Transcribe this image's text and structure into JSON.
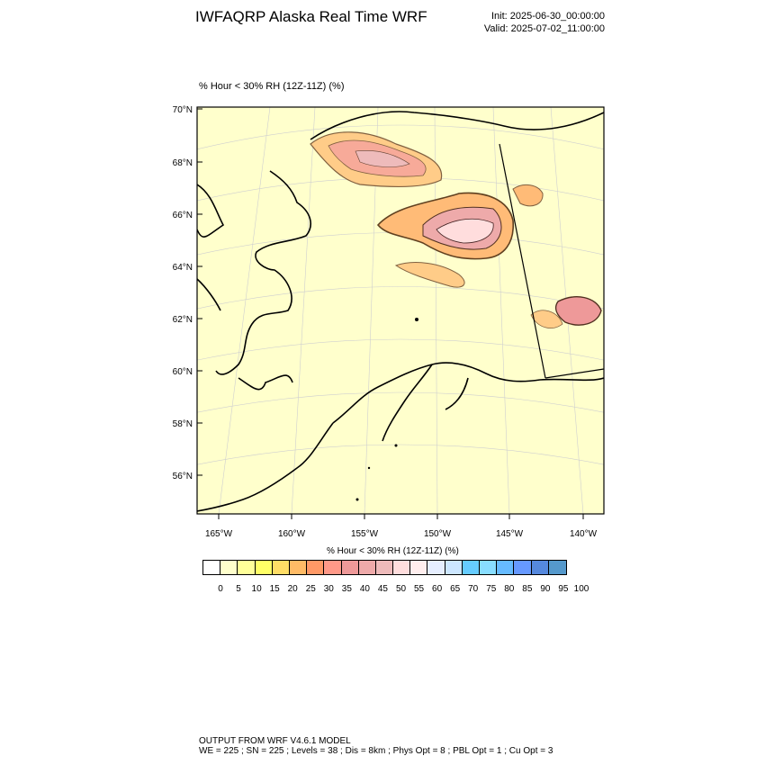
{
  "header": {
    "title": "IWFAQRP Alaska Real Time WRF",
    "init": "Init: 2025-06-30_00:00:00",
    "valid": "Valid: 2025-07-02_11:00:00"
  },
  "field_title": "% Hour < 30% RH (12Z-11Z)   (%)",
  "map": {
    "lat_labels": [
      "70°N",
      "68°N",
      "66°N",
      "64°N",
      "62°N",
      "60°N",
      "58°N",
      "56°N"
    ],
    "lon_labels": [
      "165°W",
      "160°W",
      "155°W",
      "150°W",
      "145°W",
      "140°W"
    ],
    "background_color": "#ffffcc",
    "coast_color": "#000000"
  },
  "colorbar": {
    "title": "% Hour < 30% RH (12Z-11Z)  (%)",
    "labels": [
      "0",
      "5",
      "10",
      "15",
      "20",
      "25",
      "30",
      "35",
      "40",
      "45",
      "50",
      "55",
      "60",
      "65",
      "70",
      "75",
      "80",
      "85",
      "90",
      "95",
      "100"
    ],
    "colors": [
      "#ffffff",
      "#ffffcc",
      "#ffff99",
      "#ffff66",
      "#ffdd66",
      "#ffbb66",
      "#ff9966",
      "#ff9988",
      "#ee9999",
      "#eeaaaa",
      "#eebbbb",
      "#ffdddd",
      "#ffeeee",
      "#e6eeff",
      "#cce6ff",
      "#66ccff",
      "#88ddff",
      "#66bbff",
      "#6699ff",
      "#5588dd",
      "#5599cc"
    ]
  },
  "footer": {
    "line1": "OUTPUT FROM WRF V4.6.1 MODEL",
    "line2": "WE = 225 ; SN = 225 ; Levels = 38 ; Dis = 8km ; Phys Opt = 8 ; PBL Opt = 1 ; Cu Opt = 3"
  }
}
